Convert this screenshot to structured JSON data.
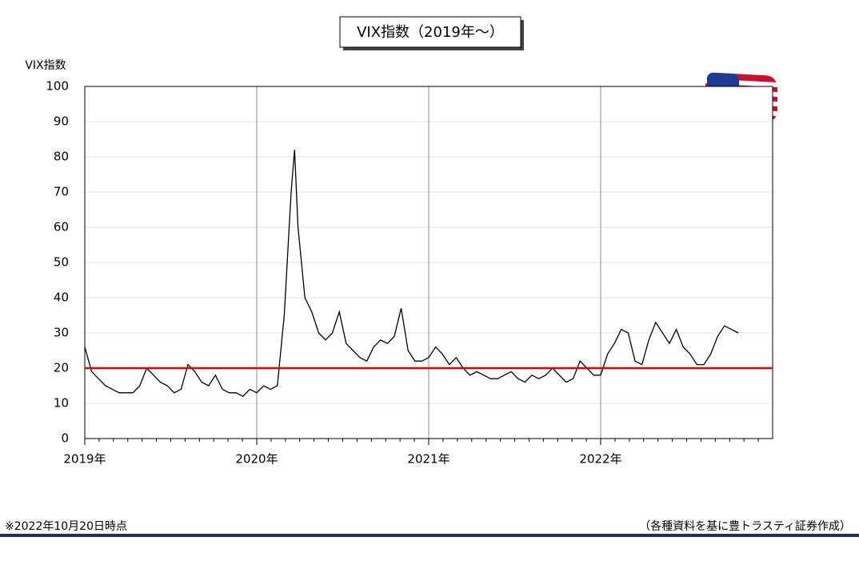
{
  "chart_data": {
    "type": "line",
    "title": "VIX指数（2019年～）",
    "y_label": "VIX指数",
    "note": "※2022年10月20日時点",
    "source": "（各種資料を基に豊トラスティ証券作成）",
    "xlim": [
      2019,
      2023
    ],
    "xticks": [
      {
        "value": 2019,
        "label": "2019年"
      },
      {
        "value": 2020,
        "label": "2020年"
      },
      {
        "value": 2021,
        "label": "2021年"
      },
      {
        "value": 2022,
        "label": "2022年"
      }
    ],
    "ylim": [
      0,
      100
    ],
    "yticks": [
      0,
      10,
      20,
      30,
      40,
      50,
      60,
      70,
      80,
      90,
      100
    ],
    "grid": true,
    "reference_line": {
      "value": 20,
      "color": "#e00000"
    },
    "series": [
      {
        "name": "VIX指数",
        "color": "#000000",
        "x": [
          2019.0,
          2019.04,
          2019.08,
          2019.12,
          2019.16,
          2019.2,
          2019.24,
          2019.28,
          2019.32,
          2019.36,
          2019.4,
          2019.44,
          2019.48,
          2019.52,
          2019.56,
          2019.6,
          2019.64,
          2019.68,
          2019.72,
          2019.76,
          2019.8,
          2019.84,
          2019.88,
          2019.92,
          2019.96,
          2020.0,
          2020.04,
          2020.08,
          2020.12,
          2020.16,
          2020.2,
          2020.22,
          2020.24,
          2020.28,
          2020.32,
          2020.36,
          2020.4,
          2020.44,
          2020.48,
          2020.52,
          2020.56,
          2020.6,
          2020.64,
          2020.68,
          2020.72,
          2020.76,
          2020.8,
          2020.84,
          2020.88,
          2020.92,
          2020.96,
          2021.0,
          2021.04,
          2021.08,
          2021.12,
          2021.16,
          2021.2,
          2021.24,
          2021.28,
          2021.32,
          2021.36,
          2021.4,
          2021.44,
          2021.48,
          2021.52,
          2021.56,
          2021.6,
          2021.64,
          2021.68,
          2021.72,
          2021.76,
          2021.8,
          2021.84,
          2021.88,
          2021.92,
          2021.96,
          2022.0,
          2022.04,
          2022.08,
          2022.12,
          2022.16,
          2022.2,
          2022.24,
          2022.28,
          2022.32,
          2022.36,
          2022.4,
          2022.44,
          2022.48,
          2022.52,
          2022.56,
          2022.6,
          2022.64,
          2022.68,
          2022.72,
          2022.76,
          2022.8
        ],
        "values": [
          26,
          19,
          17,
          15,
          14,
          13,
          13,
          13,
          15,
          20,
          18,
          16,
          15,
          13,
          14,
          21,
          19,
          16,
          15,
          18,
          14,
          13,
          13,
          12,
          14,
          13,
          15,
          14,
          15,
          35,
          70,
          82,
          60,
          40,
          36,
          30,
          28,
          30,
          36,
          27,
          25,
          23,
          22,
          26,
          28,
          27,
          29,
          37,
          25,
          22,
          22,
          23,
          26,
          24,
          21,
          23,
          20,
          18,
          19,
          18,
          17,
          17,
          18,
          19,
          17,
          16,
          18,
          17,
          18,
          20,
          18,
          16,
          17,
          22,
          20,
          18,
          18,
          24,
          27,
          31,
          30,
          22,
          21,
          28,
          33,
          30,
          27,
          31,
          26,
          24,
          21,
          21,
          24,
          29,
          32,
          31,
          30
        ]
      }
    ]
  }
}
